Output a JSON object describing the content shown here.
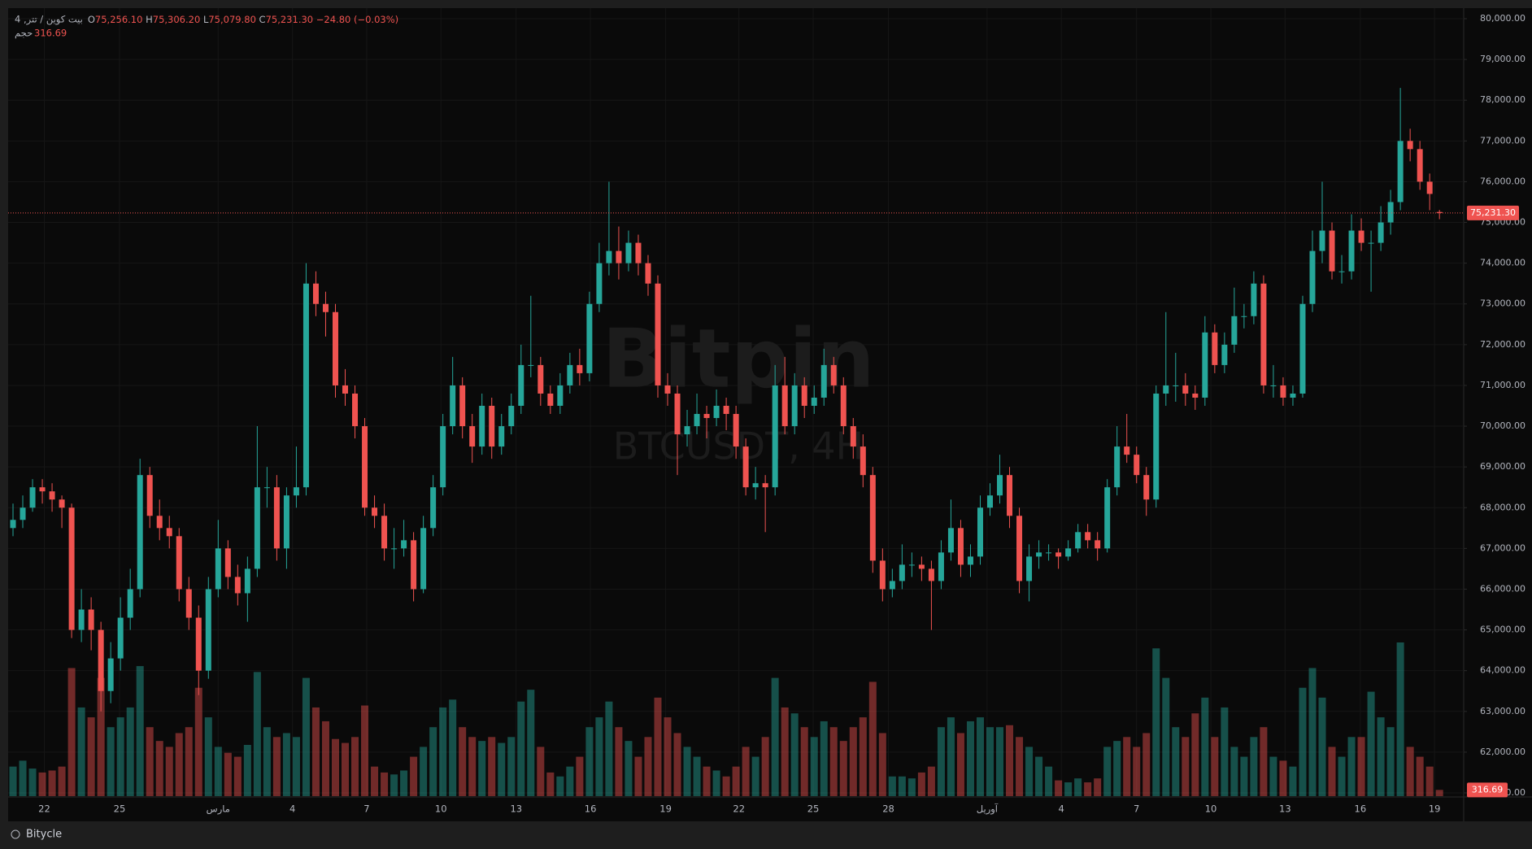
{
  "chart_data": {
    "type": "candlestick",
    "legend": {
      "symbol": "بیت کوین / تتر, 4",
      "o": "O",
      "open": "75,256.10",
      "h": "H",
      "high": "75,306.20",
      "l": "L",
      "low": "75,079.80",
      "c": "C",
      "close": "75,231.30",
      "change": "−24.80 (−0.03%)",
      "volume_name": "حجم",
      "volume_value": "316.69"
    },
    "watermark": "Bitpin",
    "watermark_sub": "BTCUSDT, 4H",
    "footer": "Bitycle",
    "last_price_label": "75,231.30",
    "last_volume_label": "316.69",
    "up_color": "#26a69a",
    "down_color": "#ef5350",
    "grid": true,
    "ylim": [
      61000,
      80000
    ],
    "yticks": [
      {
        "value": 61000,
        "label": "61,000.00"
      },
      {
        "value": 62000,
        "label": "62,000.00"
      },
      {
        "value": 63000,
        "label": "63,000.00"
      },
      {
        "value": 64000,
        "label": "64,000.00"
      },
      {
        "value": 65000,
        "label": "65,000.00"
      },
      {
        "value": 66000,
        "label": "66,000.00"
      },
      {
        "value": 67000,
        "label": "67,000.00"
      },
      {
        "value": 68000,
        "label": "68,000.00"
      },
      {
        "value": 69000,
        "label": "69,000.00"
      },
      {
        "value": 70000,
        "label": "70,000.00"
      },
      {
        "value": 71000,
        "label": "71,000.00"
      },
      {
        "value": 72000,
        "label": "72,000.00"
      },
      {
        "value": 73000,
        "label": "73,000.00"
      },
      {
        "value": 74000,
        "label": "74,000.00"
      },
      {
        "value": 75000,
        "label": "75,000.00"
      },
      {
        "value": 76000,
        "label": "76,000.00"
      },
      {
        "value": 77000,
        "label": "77,000.00"
      },
      {
        "value": 78000,
        "label": "78,000.00"
      },
      {
        "value": 79000,
        "label": "79,000.00"
      },
      {
        "value": 80000,
        "label": "80,000.00"
      }
    ],
    "xticks": [
      {
        "value": 3.2,
        "label": "22"
      },
      {
        "value": 10.9,
        "label": "25"
      },
      {
        "value": 21,
        "label": "مارس"
      },
      {
        "value": 28.6,
        "label": "4"
      },
      {
        "value": 36.2,
        "label": "7"
      },
      {
        "value": 43.8,
        "label": "10"
      },
      {
        "value": 51.5,
        "label": "13"
      },
      {
        "value": 59.1,
        "label": "16"
      },
      {
        "value": 66.8,
        "label": "19"
      },
      {
        "value": 74.3,
        "label": "22"
      },
      {
        "value": 81.9,
        "label": "25"
      },
      {
        "value": 89.6,
        "label": "28"
      },
      {
        "value": 99.7,
        "label": "آوریل"
      },
      {
        "value": 107.3,
        "label": "4"
      },
      {
        "value": 115,
        "label": "7"
      },
      {
        "value": 122.6,
        "label": "10"
      },
      {
        "value": 130.2,
        "label": "13"
      },
      {
        "value": 137.9,
        "label": "16"
      },
      {
        "value": 145.5,
        "label": "19"
      }
    ],
    "ohlc": [
      [
        67500,
        68100,
        67300,
        67700
      ],
      [
        67700,
        68300,
        67500,
        68000
      ],
      [
        68000,
        68700,
        67900,
        68500
      ],
      [
        68500,
        68700,
        68100,
        68400
      ],
      [
        68400,
        68600,
        67900,
        68200
      ],
      [
        68200,
        68300,
        67500,
        68000
      ],
      [
        68000,
        68100,
        64800,
        65000
      ],
      [
        65000,
        66000,
        64700,
        65500
      ],
      [
        65500,
        65800,
        64500,
        65000
      ],
      [
        65000,
        65200,
        63000,
        63500
      ],
      [
        63500,
        64700,
        63200,
        64300
      ],
      [
        64300,
        65800,
        64000,
        65300
      ],
      [
        65300,
        66500,
        65000,
        66000
      ],
      [
        66000,
        69200,
        65800,
        68800
      ],
      [
        68800,
        69000,
        67500,
        67800
      ],
      [
        67800,
        68200,
        67200,
        67500
      ],
      [
        67500,
        67800,
        67000,
        67300
      ],
      [
        67300,
        67500,
        65700,
        66000
      ],
      [
        66000,
        66300,
        65000,
        65300
      ],
      [
        65300,
        65600,
        63400,
        64000
      ],
      [
        64000,
        66300,
        63800,
        66000
      ],
      [
        66000,
        67700,
        65800,
        67000
      ],
      [
        67000,
        67200,
        66000,
        66300
      ],
      [
        66300,
        66600,
        65600,
        65900
      ],
      [
        65900,
        66800,
        65200,
        66500
      ],
      [
        66500,
        70000,
        66300,
        68500
      ],
      [
        68500,
        69000,
        68000,
        68500
      ],
      [
        68500,
        68800,
        66700,
        67000
      ],
      [
        67000,
        68500,
        66500,
        68300
      ],
      [
        68300,
        69500,
        68000,
        68500
      ],
      [
        68500,
        74000,
        68300,
        73500
      ],
      [
        73500,
        73800,
        72700,
        73000
      ],
      [
        73000,
        73300,
        72200,
        72800
      ],
      [
        72800,
        73000,
        70700,
        71000
      ],
      [
        71000,
        71400,
        70500,
        70800
      ],
      [
        70800,
        71000,
        69700,
        70000
      ],
      [
        70000,
        70200,
        67800,
        68000
      ],
      [
        68000,
        68300,
        67500,
        67800
      ],
      [
        67800,
        68100,
        66700,
        67000
      ],
      [
        67000,
        67500,
        66500,
        67000
      ],
      [
        67000,
        67700,
        66800,
        67200
      ],
      [
        67200,
        67400,
        65700,
        66000
      ],
      [
        66000,
        67800,
        65900,
        67500
      ],
      [
        67500,
        68800,
        67300,
        68500
      ],
      [
        68500,
        70300,
        68300,
        70000
      ],
      [
        70000,
        71700,
        69800,
        71000
      ],
      [
        71000,
        71200,
        69700,
        70000
      ],
      [
        70000,
        70300,
        69100,
        69500
      ],
      [
        69500,
        70800,
        69300,
        70500
      ],
      [
        70500,
        70700,
        69200,
        69500
      ],
      [
        69500,
        70300,
        69300,
        70000
      ],
      [
        70000,
        70800,
        69800,
        70500
      ],
      [
        70500,
        72000,
        70300,
        71500
      ],
      [
        71500,
        73200,
        71200,
        71500
      ],
      [
        71500,
        71700,
        70500,
        70800
      ],
      [
        70800,
        71000,
        70300,
        70500
      ],
      [
        70500,
        71300,
        70300,
        71000
      ],
      [
        71000,
        71800,
        70800,
        71500
      ],
      [
        71500,
        71900,
        71000,
        71300
      ],
      [
        71300,
        73300,
        71100,
        73000
      ],
      [
        73000,
        74500,
        72800,
        74000
      ],
      [
        74000,
        76000,
        73700,
        74300
      ],
      [
        74300,
        74900,
        73600,
        74000
      ],
      [
        74000,
        74800,
        73800,
        74500
      ],
      [
        74500,
        74700,
        73700,
        74000
      ],
      [
        74000,
        74200,
        73200,
        73500
      ],
      [
        73500,
        73700,
        70700,
        71000
      ],
      [
        71000,
        71300,
        70500,
        70800
      ],
      [
        70800,
        71000,
        68800,
        69800
      ],
      [
        69800,
        70400,
        69500,
        70000
      ],
      [
        70000,
        70800,
        69800,
        70300
      ],
      [
        70300,
        70500,
        69700,
        70200
      ],
      [
        70200,
        70900,
        70000,
        70500
      ],
      [
        70500,
        70700,
        69900,
        70300
      ],
      [
        70300,
        70500,
        69200,
        69500
      ],
      [
        69500,
        69700,
        68300,
        68500
      ],
      [
        68500,
        69000,
        68200,
        68600
      ],
      [
        68600,
        68800,
        67400,
        68500
      ],
      [
        68500,
        71500,
        68300,
        71000
      ],
      [
        71000,
        71700,
        69800,
        70000
      ],
      [
        70000,
        71300,
        69800,
        71000
      ],
      [
        71000,
        71200,
        70200,
        70500
      ],
      [
        70500,
        71000,
        70300,
        70700
      ],
      [
        70700,
        71900,
        70500,
        71500
      ],
      [
        71500,
        71700,
        70800,
        71000
      ],
      [
        71000,
        71200,
        69800,
        70000
      ],
      [
        70000,
        70200,
        69200,
        69500
      ],
      [
        69500,
        69800,
        68500,
        68800
      ],
      [
        68800,
        69000,
        66400,
        66700
      ],
      [
        66700,
        67000,
        65700,
        66000
      ],
      [
        66000,
        66500,
        65800,
        66200
      ],
      [
        66200,
        67100,
        66000,
        66600
      ],
      [
        66600,
        66900,
        66300,
        66600
      ],
      [
        66600,
        66800,
        66200,
        66500
      ],
      [
        66500,
        66700,
        65000,
        66200
      ],
      [
        66200,
        67200,
        66000,
        66900
      ],
      [
        66900,
        68200,
        66700,
        67500
      ],
      [
        67500,
        67700,
        66300,
        66600
      ],
      [
        66600,
        67100,
        66300,
        66800
      ],
      [
        66800,
        68300,
        66600,
        68000
      ],
      [
        68000,
        68600,
        67800,
        68300
      ],
      [
        68300,
        69300,
        68100,
        68800
      ],
      [
        68800,
        69000,
        67500,
        67800
      ],
      [
        67800,
        68000,
        65900,
        66200
      ],
      [
        66200,
        67100,
        65700,
        66800
      ],
      [
        66800,
        67200,
        66500,
        66900
      ],
      [
        66900,
        67100,
        66700,
        66900
      ],
      [
        66900,
        67000,
        66500,
        66800
      ],
      [
        66800,
        67200,
        66700,
        67000
      ],
      [
        67000,
        67600,
        66900,
        67400
      ],
      [
        67400,
        67600,
        67000,
        67200
      ],
      [
        67200,
        67400,
        66700,
        67000
      ],
      [
        67000,
        68700,
        66900,
        68500
      ],
      [
        68500,
        70000,
        68300,
        69500
      ],
      [
        69500,
        70300,
        69100,
        69300
      ],
      [
        69300,
        69500,
        68600,
        68800
      ],
      [
        68800,
        69000,
        67800,
        68200
      ],
      [
        68200,
        71000,
        68000,
        70800
      ],
      [
        70800,
        72800,
        70500,
        71000
      ],
      [
        71000,
        71800,
        70600,
        71000
      ],
      [
        71000,
        71300,
        70500,
        70800
      ],
      [
        70800,
        71000,
        70400,
        70700
      ],
      [
        70700,
        72700,
        70500,
        72300
      ],
      [
        72300,
        72500,
        71300,
        71500
      ],
      [
        71500,
        72300,
        71300,
        72000
      ],
      [
        72000,
        73400,
        71800,
        72700
      ],
      [
        72700,
        73000,
        72400,
        72700
      ],
      [
        72700,
        73800,
        72500,
        73500
      ],
      [
        73500,
        73700,
        70800,
        71000
      ],
      [
        71000,
        71500,
        70700,
        71000
      ],
      [
        71000,
        71200,
        70500,
        70700
      ],
      [
        70700,
        71000,
        70500,
        70800
      ],
      [
        70800,
        73200,
        70700,
        73000
      ],
      [
        73000,
        74800,
        72800,
        74300
      ],
      [
        74300,
        76000,
        74000,
        74800
      ],
      [
        74800,
        75000,
        73600,
        73800
      ],
      [
        73800,
        74200,
        73500,
        73800
      ],
      [
        73800,
        75200,
        73600,
        74800
      ],
      [
        74800,
        75100,
        74300,
        74500
      ],
      [
        74500,
        74800,
        73300,
        74500
      ],
      [
        74500,
        75400,
        74300,
        75000
      ],
      [
        75000,
        75800,
        74700,
        75500
      ],
      [
        75500,
        78300,
        75300,
        77000
      ],
      [
        77000,
        77300,
        76500,
        76800
      ],
      [
        76800,
        77000,
        75800,
        76000
      ],
      [
        76000,
        76200,
        75300,
        75700
      ],
      [
        75256.1,
        75306.2,
        75079.8,
        75231.3
      ]
    ],
    "volume": [
      1500,
      1800,
      1400,
      1200,
      1300,
      1500,
      6500,
      4500,
      4000,
      6000,
      3500,
      4000,
      4500,
      6600,
      3500,
      2800,
      2500,
      3200,
      3500,
      5500,
      4000,
      2500,
      2200,
      2000,
      2600,
      6300,
      3500,
      3000,
      3200,
      3000,
      6000,
      4500,
      3800,
      2900,
      2700,
      3000,
      4600,
      1500,
      1200,
      1100,
      1300,
      2000,
      2500,
      3500,
      4500,
      4900,
      3500,
      3000,
      2800,
      3000,
      2700,
      3000,
      4800,
      5400,
      2500,
      1200,
      1000,
      1500,
      2000,
      3500,
      4000,
      4800,
      3500,
      2800,
      2000,
      3000,
      5000,
      4000,
      3200,
      2500,
      2000,
      1500,
      1300,
      1000,
      1500,
      2500,
      2000,
      3000,
      6000,
      4500,
      4200,
      3500,
      3000,
      3800,
      3500,
      2800,
      3500,
      4000,
      5800,
      3200,
      1000,
      1000,
      900,
      1200,
      1500,
      3500,
      4000,
      3200,
      3800,
      4000,
      3500,
      3500,
      3600,
      3000,
      2500,
      2000,
      1500,
      800,
      700,
      900,
      700,
      900,
      2500,
      2800,
      3000,
      2500,
      3200,
      7500,
      6000,
      3500,
      3000,
      4200,
      5000,
      3000,
      4500,
      2500,
      2000,
      3000,
      3500,
      2000,
      1800,
      1500,
      5500,
      6500,
      5000,
      2500,
      2000,
      3000,
      3000,
      5300,
      4000,
      3500,
      7800,
      2500,
      2000,
      1500,
      316.69
    ]
  }
}
